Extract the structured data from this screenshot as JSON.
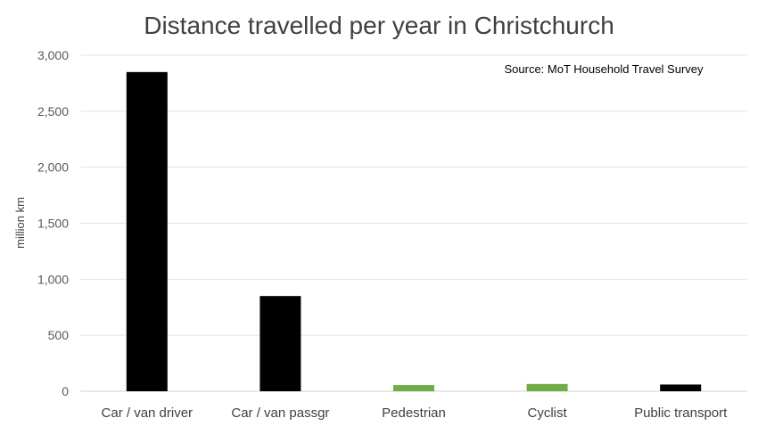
{
  "chart_data": {
    "type": "bar",
    "title": "Distance travelled per year in Christchurch",
    "annotation": "Source: MoT Household Travel Survey",
    "ylabel": "million km",
    "xlabel": "",
    "ylim": [
      0,
      3000
    ],
    "yticks": [
      0,
      500,
      1000,
      1500,
      2000,
      2500,
      3000
    ],
    "ytick_labels": [
      "0",
      "500",
      "1,000",
      "1,500",
      "2,000",
      "2,500",
      "3,000"
    ],
    "grid": true,
    "categories": [
      "Car / van driver",
      "Car / van passgr",
      "Pedestrian",
      "Cyclist",
      "Public transport"
    ],
    "values": [
      2850,
      850,
      55,
      65,
      60
    ],
    "colors": [
      "#000000",
      "#000000",
      "#70ad47",
      "#70ad47",
      "#000000"
    ]
  }
}
